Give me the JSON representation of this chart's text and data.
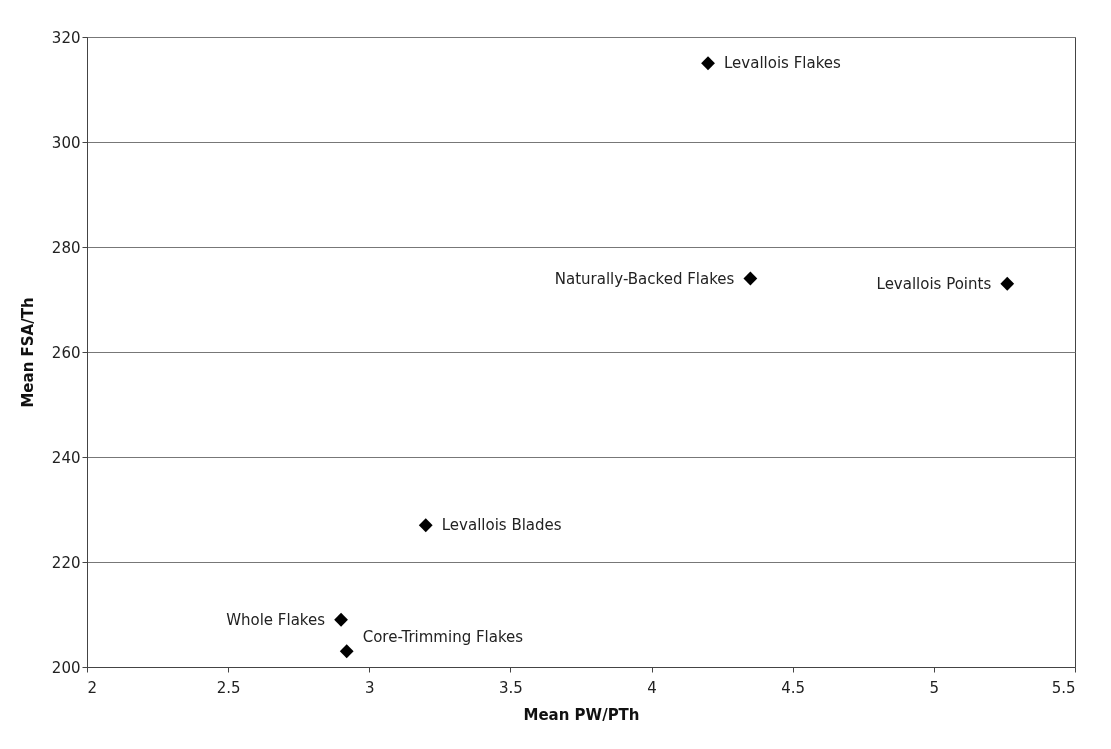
{
  "chart_data": {
    "type": "scatter",
    "xlabel": "Mean PW/PTh",
    "ylabel": "Mean FSA/Th",
    "x": [
      4.2,
      4.35,
      5.26,
      3.2,
      2.9,
      2.92
    ],
    "series": [
      {
        "color": "#000000",
        "values": [
          315,
          274,
          273,
          227,
          209,
          203
        ]
      }
    ],
    "annotations": [
      {
        "text": "Levallois  Flakes",
        "x": 4.2,
        "y": 315
      },
      {
        "text": "Naturally-Backed  Flakes",
        "x": 4.35,
        "y": 274
      },
      {
        "text": "Levallois Points",
        "x": 5.26,
        "y": 273
      },
      {
        "text": "Levallois  Blades",
        "x": 3.2,
        "y": 227
      },
      {
        "text": "Whole  Flakes",
        "x": 2.9,
        "y": 209
      },
      {
        "text": "Core-Trimming Flakes",
        "x": 2.92,
        "y": 203
      }
    ],
    "xlim": [
      2,
      5.5
    ],
    "xticks": [
      2,
      2.5,
      3,
      3.5,
      4,
      4.5,
      5,
      5.5
    ],
    "ylim": [
      200,
      320
    ],
    "yticks": [
      200,
      220,
      240,
      260,
      280,
      300,
      320
    ],
    "grid": "y",
    "marker": "diamond"
  }
}
